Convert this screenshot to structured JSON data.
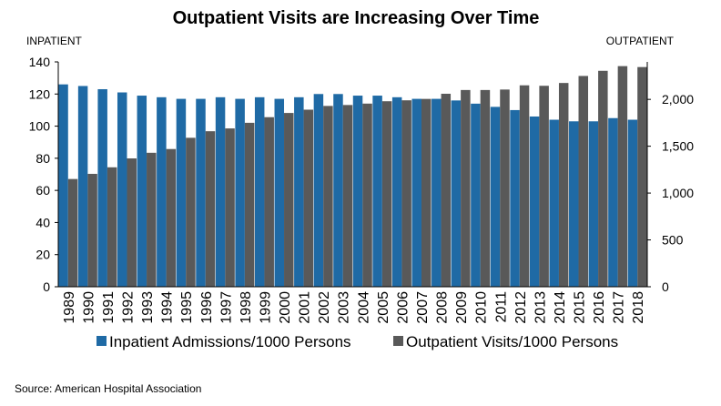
{
  "chart_data": {
    "type": "bar",
    "title": "Outpatient Visits are Increasing Over Time",
    "left_axis_label": "INPATIENT",
    "right_axis_label": "OUTPATIENT",
    "left_ylim": [
      0,
      140
    ],
    "left_ticks": [
      0,
      20,
      40,
      60,
      80,
      100,
      120,
      140
    ],
    "right_ylim": [
      0,
      2400
    ],
    "right_ticks": [
      0,
      500,
      1000,
      1500,
      2000
    ],
    "right_tick_labels": [
      "0",
      "500",
      "1,000",
      "1,500",
      "2,000"
    ],
    "categories": [
      "1989",
      "1990",
      "1991",
      "1992",
      "1993",
      "1994",
      "1995",
      "1996",
      "1997",
      "1998",
      "1999",
      "2000",
      "2001",
      "2002",
      "2003",
      "2004",
      "2005",
      "2006",
      "2007",
      "2008",
      "2009",
      "2010",
      "2011",
      "2012",
      "2013",
      "2014",
      "2015",
      "2016",
      "2017",
      "2018"
    ],
    "series": [
      {
        "name": "Inpatient Admissions/1000 Persons",
        "axis": "left",
        "color": "#1F6AA5",
        "values": [
          126,
          125,
          123,
          121,
          119,
          118,
          117,
          117,
          118,
          117,
          118,
          117,
          118,
          120,
          120,
          119,
          119,
          118,
          117,
          117,
          116,
          114,
          112,
          110,
          106,
          104,
          103,
          103,
          105,
          104
        ]
      },
      {
        "name": "Outpatient Visits/1000 Persons",
        "axis": "right",
        "color": "#595959",
        "values": [
          1150,
          1205,
          1275,
          1370,
          1430,
          1470,
          1590,
          1660,
          1690,
          1750,
          1810,
          1855,
          1890,
          1930,
          1940,
          1955,
          1980,
          1990,
          2005,
          2060,
          2100,
          2100,
          2105,
          2150,
          2145,
          2175,
          2250,
          2305,
          2355,
          2345
        ]
      }
    ],
    "source": "Source: American Hospital Association"
  }
}
